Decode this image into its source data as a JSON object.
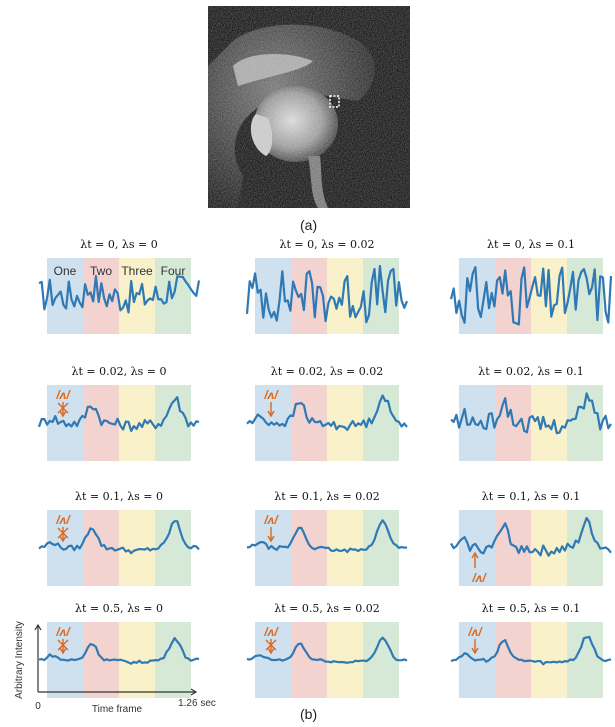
{
  "figure": {
    "label_a": "(a)",
    "label_b": "(b)"
  },
  "segments": {
    "labels": [
      "One",
      "Two",
      "Three",
      "Four"
    ],
    "colors": [
      "#cfe0ee",
      "#f2d3d0",
      "#f8f1c9",
      "#d5e9d6"
    ]
  },
  "axis": {
    "ylabel": "Arbitrary Intensity",
    "xlabel": "Time frame",
    "x_start": "0",
    "x_end": "1.26 sec"
  },
  "signal_color": "#2f79b5",
  "annotation_color": "#d9691f",
  "rows": [
    [
      {
        "title": "λt = 0, λs = 0",
        "annotation": "",
        "ann_type": "none"
      },
      {
        "title": "λt = 0, λs = 0.02",
        "annotation": "",
        "ann_type": "none"
      },
      {
        "title": "λt = 0, λs = 0.1",
        "annotation": "",
        "ann_type": "none"
      }
    ],
    [
      {
        "title": "λt = 0.02, λs = 0",
        "annotation": "/ʌ/",
        "ann_type": "cross"
      },
      {
        "title": "λt = 0.02, λs = 0.02",
        "annotation": "/ʌ/",
        "ann_type": "down"
      },
      {
        "title": "λt = 0.02, λs = 0.1",
        "annotation": "",
        "ann_type": "none"
      }
    ],
    [
      {
        "title": "λt = 0.1, λs = 0",
        "annotation": "/ʌ/",
        "ann_type": "cross"
      },
      {
        "title": "λt = 0.1, λs = 0.02",
        "annotation": "/ʌ/",
        "ann_type": "down"
      },
      {
        "title": "λt = 0.1, λs = 0.1",
        "annotation": "/ʌ/",
        "ann_type": "up"
      }
    ],
    [
      {
        "title": "λt = 0.5, λs = 0",
        "annotation": "/ʌ/",
        "ann_type": "cross"
      },
      {
        "title": "λt = 0.5, λs = 0.02",
        "annotation": "/ʌ/",
        "ann_type": "cross"
      },
      {
        "title": "λt = 0.5, λs = 0.1",
        "annotation": "/ʌ/",
        "ann_type": "down"
      }
    ]
  ]
}
